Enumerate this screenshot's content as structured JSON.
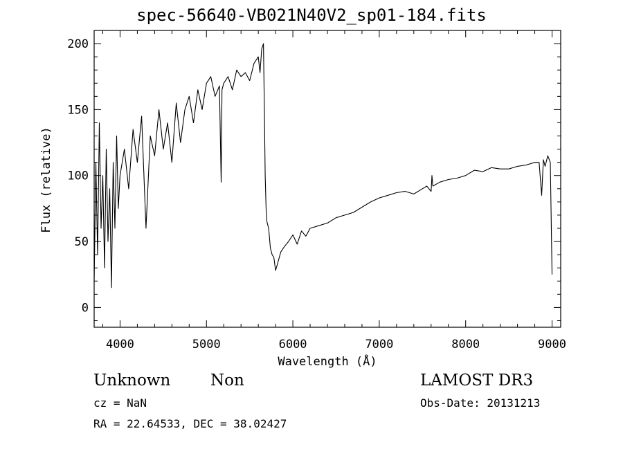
{
  "header": {
    "title": "spec-56640-VB021N40V2_sp01-184.fits"
  },
  "info": {
    "object_type": "Unknown",
    "object_class": "Non",
    "survey": "LAMOST DR3",
    "cz_text": "cz = NaN",
    "obs_date_text": "Obs-Date: 20131213",
    "coords_text": "RA =  22.64533, DEC =  38.02427"
  },
  "chart_data": {
    "type": "line",
    "title": "spec-56640-VB021N40V2_sp01-184.fits",
    "xlabel": "Wavelength (Å)",
    "ylabel": "Flux (relative)",
    "xlim": [
      3700,
      9100
    ],
    "ylim": [
      -15,
      210
    ],
    "xticks": [
      4000,
      5000,
      6000,
      7000,
      8000,
      9000
    ],
    "yticks": [
      0,
      50,
      100,
      150,
      200
    ],
    "grid": false,
    "series": [
      {
        "name": "",
        "x": [
          3700,
          3720,
          3740,
          3760,
          3780,
          3800,
          3820,
          3840,
          3860,
          3880,
          3900,
          3920,
          3940,
          3960,
          3980,
          4000,
          4050,
          4100,
          4150,
          4200,
          4250,
          4300,
          4350,
          4400,
          4450,
          4500,
          4550,
          4600,
          4650,
          4700,
          4750,
          4800,
          4850,
          4900,
          4950,
          5000,
          5050,
          5100,
          5150,
          5170,
          5180,
          5200,
          5250,
          5300,
          5350,
          5400,
          5450,
          5500,
          5550,
          5600,
          5620,
          5640,
          5660,
          5670,
          5680,
          5690,
          5700,
          5720,
          5740,
          5760,
          5780,
          5800,
          5830,
          5860,
          5900,
          5950,
          6000,
          6050,
          6100,
          6150,
          6200,
          6300,
          6400,
          6500,
          6600,
          6700,
          6800,
          6900,
          7000,
          7100,
          7200,
          7300,
          7400,
          7500,
          7550,
          7600,
          7610,
          7620,
          7700,
          7800,
          7900,
          8000,
          8100,
          8200,
          8300,
          8400,
          8500,
          8600,
          8700,
          8800,
          8850,
          8880,
          8900,
          8920,
          8950,
          8980,
          9000
        ],
        "y": [
          20,
          110,
          40,
          140,
          60,
          100,
          30,
          120,
          50,
          90,
          15,
          110,
          60,
          130,
          75,
          100,
          120,
          90,
          135,
          110,
          145,
          60,
          130,
          115,
          150,
          120,
          140,
          110,
          155,
          125,
          150,
          160,
          140,
          165,
          150,
          170,
          175,
          160,
          168,
          95,
          165,
          170,
          175,
          165,
          180,
          175,
          178,
          172,
          185,
          190,
          178,
          196,
          200,
          150,
          100,
          75,
          65,
          60,
          45,
          40,
          38,
          28,
          35,
          42,
          46,
          50,
          55,
          48,
          58,
          54,
          60,
          62,
          64,
          68,
          70,
          72,
          76,
          80,
          83,
          85,
          87,
          88,
          86,
          90,
          92,
          88,
          100,
          92,
          95,
          97,
          98,
          100,
          104,
          103,
          106,
          105,
          105,
          107,
          108,
          110,
          110,
          85,
          112,
          107,
          115,
          110,
          25
        ]
      }
    ]
  }
}
